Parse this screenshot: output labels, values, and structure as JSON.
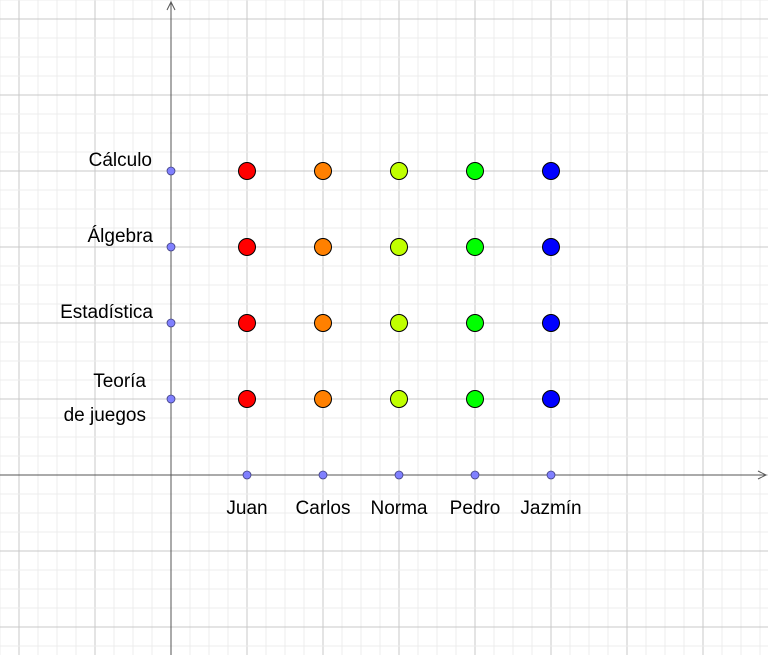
{
  "chart_data": {
    "type": "scatter",
    "title": "",
    "xlabel": "",
    "ylabel": "",
    "grid": true,
    "x_categories": [
      "Juan",
      "Carlos",
      "Norma",
      "Pedro",
      "Jazmín"
    ],
    "y_categories": [
      {
        "key": "teoria",
        "lines": [
          "Teoría",
          "de juegos"
        ]
      },
      {
        "key": "estadistica",
        "lines": [
          "Estadística"
        ]
      },
      {
        "key": "algebra",
        "lines": [
          "Álgebra"
        ]
      },
      {
        "key": "calculo",
        "lines": [
          "Cálculo"
        ]
      }
    ],
    "series": [
      {
        "x": "Juan",
        "color": "#ff0000",
        "y_values": [
          "Teoría de juegos",
          "Estadística",
          "Álgebra",
          "Cálculo"
        ]
      },
      {
        "x": "Carlos",
        "color": "#ff8000",
        "y_values": [
          "Teoría de juegos",
          "Estadística",
          "Álgebra",
          "Cálculo"
        ]
      },
      {
        "x": "Norma",
        "color": "#c0ff00",
        "y_values": [
          "Teoría de juegos",
          "Estadística",
          "Álgebra",
          "Cálculo"
        ]
      },
      {
        "x": "Pedro",
        "color": "#00ff00",
        "y_values": [
          "Teoría de juegos",
          "Estadística",
          "Álgebra",
          "Cálculo"
        ]
      },
      {
        "x": "Jazmín",
        "color": "#0000ff",
        "y_values": [
          "Teoría de juegos",
          "Estadística",
          "Álgebra",
          "Cálculo"
        ]
      }
    ],
    "axis_marker_color": "#8080ff",
    "grid_color": "#d0d0d0",
    "axis_color": "#555555"
  }
}
